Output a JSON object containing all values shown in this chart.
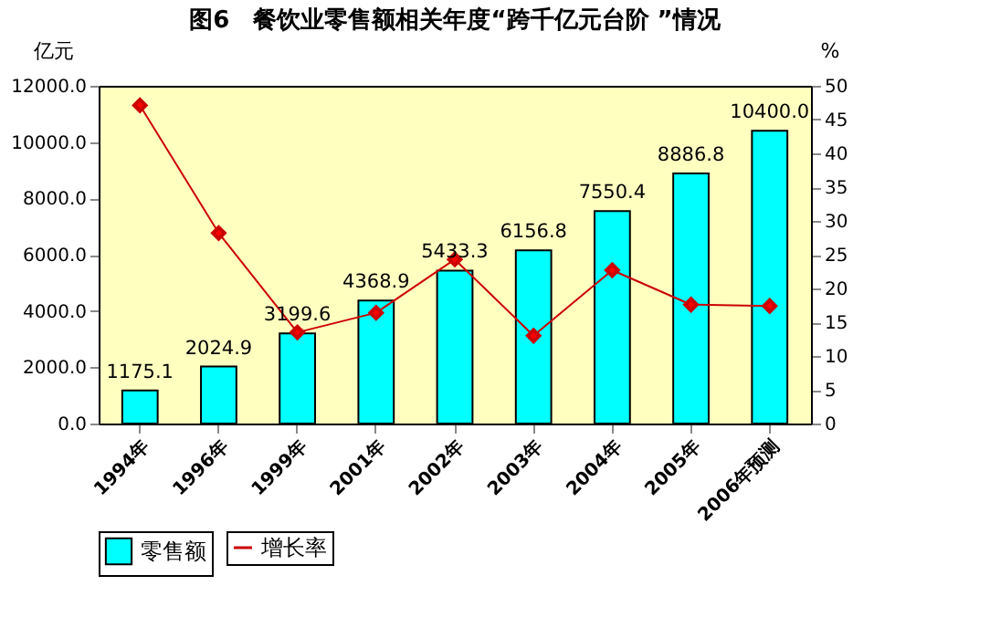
{
  "chart_data": {
    "type": "bar",
    "title": "图6　餐饮业零售额相关年度“跨千亿元台阶 ”情况",
    "ylabel": "亿元",
    "y2label": "%",
    "categories": [
      "1994年",
      "1996年",
      "1999年",
      "2001年",
      "2002年",
      "2003年",
      "2004年",
      "2005年",
      "2006年预测"
    ],
    "series": [
      {
        "name": "零售额",
        "color": "#00ffff",
        "values": [
          1175.1,
          2024.9,
          3199.6,
          4368.9,
          5433.3,
          6156.8,
          7550.4,
          8886.8,
          10400.0
        ],
        "value_labels": [
          "1175.1",
          "2024.9",
          "3199.6",
          "4368.9",
          "5433.3",
          "6156.8",
          "7550.4",
          "8886.8",
          "10400.0"
        ]
      },
      {
        "name": "增长率",
        "type": "line",
        "axis": "y2",
        "color": "#cc0000",
        "marker": "diamond",
        "values": [
          47.1,
          28.2,
          13.5,
          16.4,
          24.3,
          13.0,
          22.7,
          17.6,
          17.4
        ]
      }
    ],
    "ylim": [
      0,
      12000
    ],
    "yticks": [
      {
        "value": 0,
        "label": "0.0"
      },
      {
        "value": 2000,
        "label": "2000.0"
      },
      {
        "value": 4000,
        "label": "4000.0"
      },
      {
        "value": 6000,
        "label": "6000.0"
      },
      {
        "value": 8000,
        "label": "8000.0"
      },
      {
        "value": 10000,
        "label": "10000.0"
      },
      {
        "value": 12000,
        "label": "12000.0"
      }
    ],
    "y2lim": [
      0,
      50
    ],
    "y2ticks": [
      0,
      5,
      10,
      15,
      20,
      25,
      30,
      35,
      40,
      45,
      50
    ],
    "grid": false,
    "legend": "bottom"
  }
}
